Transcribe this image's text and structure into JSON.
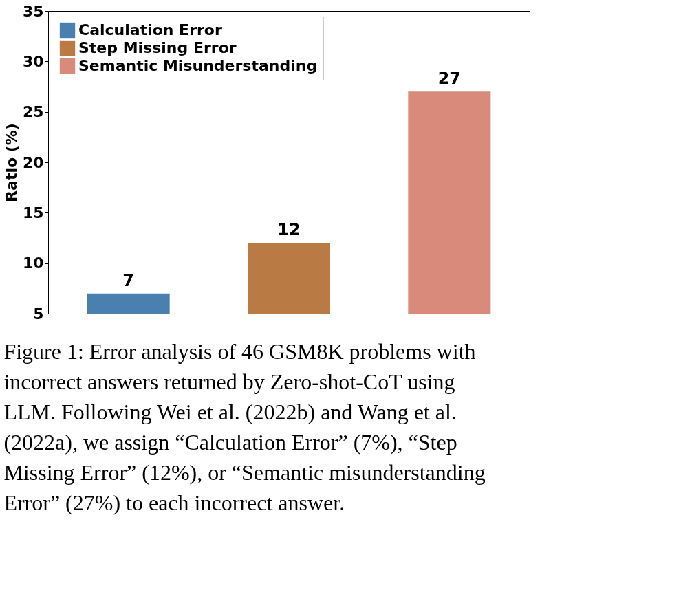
{
  "chart_data": {
    "type": "bar",
    "ylabel": "Ratio (%)",
    "categories": [
      null,
      null,
      null
    ],
    "series": [
      {
        "name": "Calculation Error",
        "color": "#4a80b0",
        "values": [
          7,
          null,
          null
        ]
      },
      {
        "name": "Step Missing Error",
        "color": "#b97a44",
        "values": [
          null,
          12,
          null
        ]
      },
      {
        "name": "Semantic Misunderstanding",
        "color": "#d98a7a",
        "values": [
          null,
          null,
          27
        ]
      }
    ],
    "ylim": [
      5,
      35
    ],
    "yticks": [
      5,
      10,
      15,
      20,
      25,
      30,
      35
    ],
    "grid": false,
    "legend": "top left",
    "data_labels": true,
    "annotations": [
      "Figure 1: Error analysis of 46 GSM8K problems with incorrect answers returned by Zero-shot-CoT using LLM. Following Wei et al. (2022b) and Wang et al. (2022a), we assign “Calculation Error” (7%), “Step Missing Error” (12%), or “Semantic misunderstanding Error” (27%) to each incorrect answer."
    ]
  }
}
